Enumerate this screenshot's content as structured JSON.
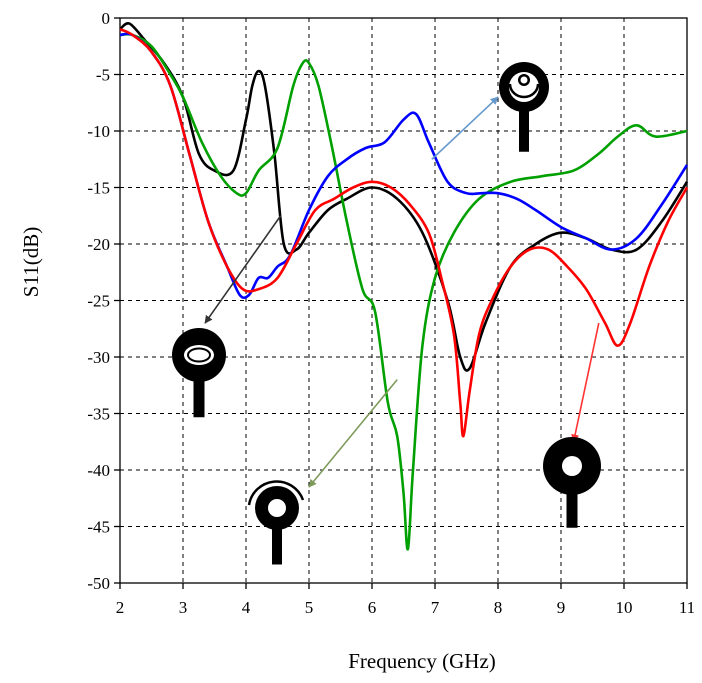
{
  "chart_data": {
    "type": "line",
    "title": "",
    "xlabel": "Frequency (GHz)",
    "ylabel": "S11(dB)",
    "xlim": [
      2,
      11
    ],
    "ylim": [
      -50,
      0
    ],
    "xticks": [
      "2",
      "3",
      "4",
      "5",
      "6",
      "7",
      "8",
      "9",
      "10",
      "11"
    ],
    "yticks": [
      "0",
      "-5",
      "-10",
      "-15",
      "-20",
      "-25",
      "-30",
      "-35",
      "-40",
      "-45",
      "-50"
    ],
    "grid": true,
    "legend": "none",
    "series": [
      {
        "color": "#000000",
        "x": [
          2.0,
          2.15,
          2.4,
          2.7,
          3.0,
          3.25,
          3.5,
          3.8,
          4.0,
          4.1,
          4.2,
          4.3,
          4.45,
          4.6,
          4.8,
          5.0,
          5.3,
          5.6,
          6.0,
          6.4,
          6.8,
          7.2,
          7.4,
          7.55,
          7.8,
          8.2,
          8.6,
          9.0,
          9.4,
          9.8,
          10.2,
          10.6,
          11.0
        ],
        "y": [
          -1.0,
          -0.5,
          -2.0,
          -4.0,
          -7.0,
          -12.0,
          -13.5,
          -13.5,
          -9.0,
          -6.0,
          -4.7,
          -6.0,
          -12.0,
          -20.0,
          -20.5,
          -19.0,
          -17.0,
          -16.0,
          -15.0,
          -16.0,
          -19.0,
          -25.0,
          -30.0,
          -31.0,
          -27.0,
          -22.0,
          -20.0,
          -19.0,
          -19.5,
          -20.5,
          -20.5,
          -18.0,
          -14.5
        ]
      },
      {
        "color": "#00a000",
        "x": [
          2.0,
          2.2,
          2.5,
          2.8,
          3.0,
          3.3,
          3.6,
          3.85,
          4.0,
          4.2,
          4.5,
          4.75,
          4.9,
          5.0,
          5.15,
          5.35,
          5.6,
          5.85,
          6.05,
          6.25,
          6.4,
          6.5,
          6.57,
          6.65,
          6.8,
          7.0,
          7.3,
          7.7,
          8.2,
          8.7,
          9.2,
          9.6,
          9.9,
          10.2,
          10.5,
          11.0
        ],
        "y": [
          -1.5,
          -1.5,
          -2.5,
          -5.0,
          -7.0,
          -11.0,
          -14.0,
          -15.5,
          -15.5,
          -13.5,
          -11.5,
          -6.0,
          -4.0,
          -4.0,
          -6.0,
          -11.0,
          -18.0,
          -24.0,
          -26.0,
          -34.0,
          -37.0,
          -42.0,
          -47.0,
          -40.0,
          -29.0,
          -23.0,
          -19.0,
          -16.0,
          -14.5,
          -14.0,
          -13.5,
          -12.0,
          -10.5,
          -9.5,
          -10.5,
          -10.0
        ]
      },
      {
        "color": "#0000ff",
        "x": [
          2.0,
          2.2,
          2.5,
          2.8,
          3.1,
          3.4,
          3.7,
          3.9,
          4.05,
          4.2,
          4.35,
          4.5,
          4.7,
          5.0,
          5.3,
          5.6,
          5.9,
          6.2,
          6.5,
          6.7,
          6.9,
          7.2,
          7.5,
          7.75,
          8.0,
          8.3,
          8.6,
          9.0,
          9.4,
          9.8,
          10.2,
          10.6,
          11.0
        ],
        "y": [
          -1.5,
          -1.5,
          -3.0,
          -6.0,
          -12.0,
          -18.0,
          -22.0,
          -24.5,
          -24.5,
          -23.0,
          -23.0,
          -22.0,
          -21.0,
          -17.0,
          -14.0,
          -12.5,
          -11.5,
          -11.0,
          -9.0,
          -8.5,
          -11.0,
          -14.5,
          -15.5,
          -15.5,
          -15.5,
          -16.0,
          -17.0,
          -18.5,
          -19.5,
          -20.5,
          -19.5,
          -16.5,
          -13.0
        ]
      },
      {
        "color": "#ff0000",
        "x": [
          2.0,
          2.2,
          2.5,
          2.8,
          3.1,
          3.4,
          3.7,
          3.95,
          4.2,
          4.5,
          4.8,
          5.1,
          5.4,
          5.7,
          6.0,
          6.3,
          6.6,
          6.9,
          7.1,
          7.3,
          7.4,
          7.45,
          7.55,
          7.7,
          7.9,
          8.2,
          8.5,
          8.8,
          9.1,
          9.4,
          9.7,
          9.9,
          10.1,
          10.4,
          10.7,
          11.0
        ],
        "y": [
          -1.0,
          -1.5,
          -3.0,
          -6.0,
          -12.0,
          -18.0,
          -22.0,
          -24.0,
          -24.0,
          -23.0,
          -20.0,
          -17.0,
          -16.0,
          -15.0,
          -14.5,
          -15.0,
          -16.5,
          -19.0,
          -23.0,
          -28.0,
          -34.0,
          -37.0,
          -33.0,
          -28.0,
          -25.0,
          -22.0,
          -20.5,
          -20.5,
          -22.0,
          -24.0,
          -27.0,
          -29.0,
          -27.0,
          -22.0,
          -18.0,
          -15.0
        ]
      }
    ],
    "annotations": [
      {
        "target": "black",
        "color": "#333333",
        "from": [
          4.55,
          -17.5
        ],
        "to": [
          3.35,
          -27.0
        ],
        "icon": "ring-with-inner-ring"
      },
      {
        "target": "green",
        "color": "#7f9b5c",
        "from": [
          6.4,
          -32.0
        ],
        "to": [
          5.0,
          -41.5
        ],
        "icon": "ring-with-outer-arc"
      },
      {
        "target": "blue",
        "color": "#6699cc",
        "from": [
          6.95,
          -12.5
        ],
        "to": [
          8.0,
          -7.0
        ],
        "icon": "ring-with-inner-arc"
      },
      {
        "target": "red",
        "color": "#ff3333",
        "from": [
          9.6,
          -27.0
        ],
        "to": [
          9.2,
          -37.5
        ],
        "icon": "plain-ring"
      }
    ]
  }
}
